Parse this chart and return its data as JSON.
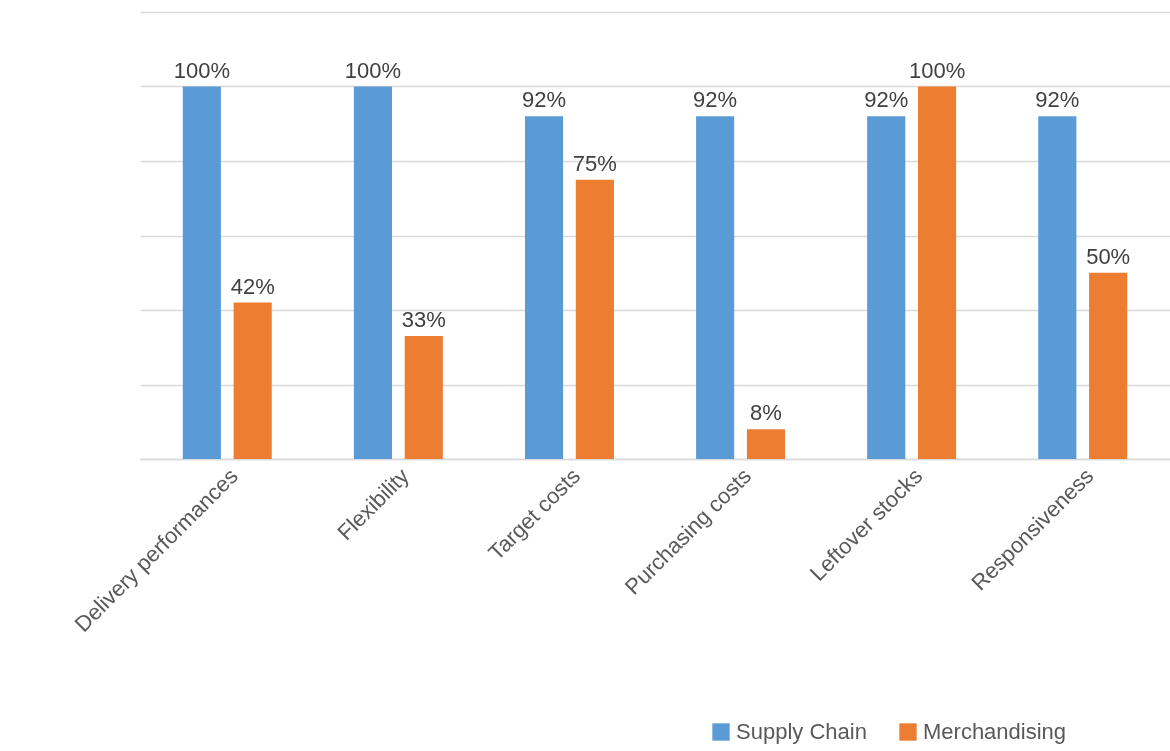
{
  "chart_data": {
    "type": "bar",
    "categories": [
      "Delivery performances",
      "Flexibility",
      "Target costs",
      "Purchasing costs",
      "Leftover stocks",
      "Responsiveness"
    ],
    "series": [
      {
        "name": "Supply Chain",
        "color": "#5b9bd5",
        "values": [
          100,
          100,
          92,
          92,
          92,
          92
        ],
        "value_labels": [
          "100%",
          "100%",
          "92%",
          "92%",
          "92%",
          "92%"
        ]
      },
      {
        "name": "Merchandising",
        "color": "#ed7d31",
        "values": [
          42,
          33,
          75,
          8,
          100,
          50
        ],
        "value_labels": [
          "42%",
          "33%",
          "75%",
          "8%",
          "100%",
          "50%"
        ]
      }
    ],
    "ylim": [
      0,
      120
    ],
    "yticks": [
      {
        "value": 0,
        "label": null
      },
      {
        "value": 20,
        "label": null
      },
      {
        "value": 40,
        "label": null
      },
      {
        "value": 60,
        "label": null
      },
      {
        "value": 80,
        "label": null
      },
      {
        "value": 100,
        "label": null
      },
      {
        "value": 120,
        "label": null
      }
    ],
    "tick_labels": "x",
    "grid": "y",
    "legend": "bottom right"
  }
}
